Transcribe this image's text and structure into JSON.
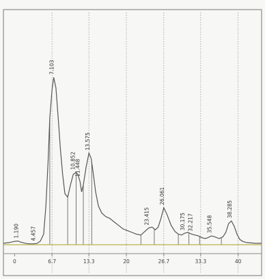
{
  "chart_data": {
    "type": "line",
    "title": "",
    "xlabel": "",
    "ylabel": "",
    "x_tick_labels": [
      "0",
      "6.7",
      "13.3",
      "20",
      "26.7",
      "33.3",
      "40"
    ],
    "x_ticks": [
      0,
      6.7,
      13.3,
      20,
      26.7,
      33.3,
      40
    ],
    "xlim": [
      -2,
      44.2
    ],
    "ylim": [
      0,
      100
    ],
    "grid": "vertical",
    "trace_color": "#555555",
    "baseline_color": "#b8b24a",
    "x": [
      -2.0,
      -1.0,
      0.0,
      0.6,
      1.0,
      1.8,
      2.5,
      3.3,
      4.0,
      4.6,
      5.2,
      5.6,
      6.0,
      6.3,
      6.7,
      7.0,
      7.4,
      7.8,
      8.2,
      8.6,
      9.0,
      9.5,
      10.0,
      10.5,
      11.0,
      11.3,
      11.7,
      12.0,
      12.3,
      12.8,
      13.3,
      13.7,
      14.1,
      14.5,
      15.0,
      15.6,
      16.3,
      17.0,
      17.8,
      18.6,
      19.4,
      20.2,
      21.0,
      21.8,
      22.6,
      23.3,
      24.0,
      24.6,
      25.2,
      25.7,
      26.2,
      26.7,
      27.3,
      28.0,
      28.7,
      29.3,
      29.9,
      30.4,
      31.0,
      31.7,
      32.3,
      32.9,
      33.5,
      34.1,
      34.6,
      35.2,
      35.8,
      36.6,
      37.3,
      37.8,
      38.3,
      38.8,
      39.3,
      39.8,
      40.3,
      40.9,
      41.6,
      42.3,
      43.0,
      44.2
    ],
    "y": [
      0.8,
      1.2,
      1.9,
      2.1,
      1.6,
      0.9,
      0.5,
      0.5,
      0.7,
      2.0,
      6.0,
      22.0,
      48.0,
      72.0,
      88.0,
      95.0,
      89.0,
      72.0,
      54.0,
      40.0,
      29.0,
      27.0,
      34.0,
      40.0,
      41.0,
      40.0,
      36.0,
      30.0,
      34.0,
      44.0,
      52.0,
      49.0,
      40.0,
      30.0,
      22.0,
      18.0,
      16.0,
      15.0,
      13.0,
      11.0,
      9.0,
      8.0,
      7.0,
      6.0,
      5.5,
      7.5,
      9.5,
      10.0,
      8.5,
      10.0,
      15.0,
      21.0,
      17.0,
      11.0,
      7.5,
      6.0,
      5.5,
      6.5,
      7.0,
      6.0,
      5.5,
      5.0,
      4.0,
      3.5,
      4.0,
      5.0,
      4.5,
      3.5,
      4.5,
      7.0,
      12.0,
      13.5,
      10.5,
      6.0,
      3.0,
      1.8,
      1.2,
      1.0,
      0.8,
      0.8
    ],
    "peaks": [
      {
        "label": "1.190",
        "x": 0.6,
        "y": 2.1
      },
      {
        "label": "4.457",
        "x": 3.7,
        "y": 0.6
      },
      {
        "label": "7.103",
        "x": 7.0,
        "y": 95.0
      },
      {
        "label": "10.852",
        "x": 10.8,
        "y": 41.0
      },
      {
        "label": "11.448",
        "x": 11.6,
        "y": 37.0
      },
      {
        "label": "13.575",
        "x": 13.4,
        "y": 52.0
      },
      {
        "label": "23.415",
        "x": 24.0,
        "y": 9.5
      },
      {
        "label": "26.061",
        "x": 26.7,
        "y": 21.0
      },
      {
        "label": "30.175",
        "x": 30.4,
        "y": 6.5
      },
      {
        "label": "32.217",
        "x": 31.8,
        "y": 6.0
      },
      {
        "label": "35.548",
        "x": 35.2,
        "y": 5.0
      },
      {
        "label": "38.285",
        "x": 38.8,
        "y": 13.5
      }
    ],
    "integration_drops": [
      6.3,
      9.5,
      11.0,
      12.3,
      13.8,
      22.6,
      25.0,
      29.3,
      31.2,
      33.1,
      37.0
    ]
  }
}
